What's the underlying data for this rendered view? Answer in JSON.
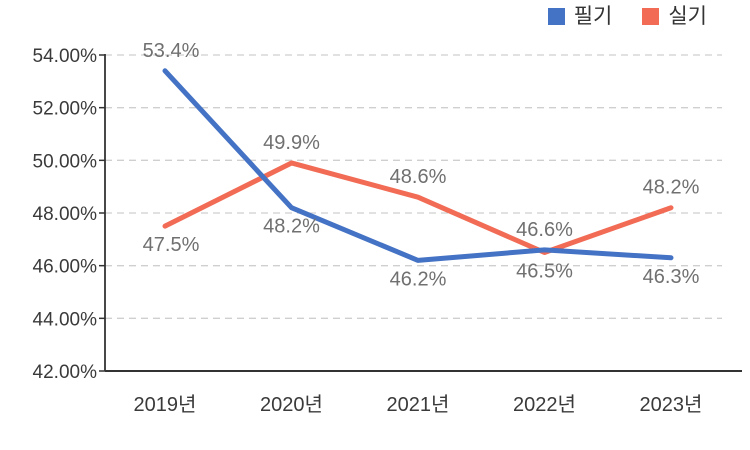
{
  "page": {
    "background_color": "#ffffff"
  },
  "legend": {
    "position": "top-right",
    "items": [
      {
        "label": "필기",
        "color": "#4472c4"
      },
      {
        "label": "실기",
        "color": "#f26b55"
      }
    ]
  },
  "style": {
    "grid_color": "#cfcfcf",
    "axis_color": "#333333",
    "axis_tick_label_color": "#3a3a3a",
    "data_label_color": "#707070",
    "legend_text_color": "#333333"
  },
  "chart_data": {
    "type": "line",
    "title": "",
    "xlabel": "",
    "ylabel": "",
    "grid": true,
    "grid_style": "dashed",
    "legend_position": "top-right",
    "categories": [
      "2019년",
      "2020년",
      "2021년",
      "2022년",
      "2023년"
    ],
    "series": [
      {
        "name": "필기",
        "color": "#4472c4",
        "values": [
          53.4,
          48.2,
          46.2,
          46.6,
          46.3
        ],
        "data_labels": [
          "53.4%",
          "48.2%",
          "46.2%",
          "46.6%",
          "46.3%"
        ],
        "label_positions": [
          "above",
          "below",
          "below",
          "above",
          "below"
        ]
      },
      {
        "name": "실기",
        "color": "#f26b55",
        "values": [
          47.5,
          49.9,
          48.6,
          46.5,
          48.2
        ],
        "data_labels": [
          "47.5%",
          "49.9%",
          "48.6%",
          "46.5%",
          "48.2%"
        ],
        "label_positions": [
          "below",
          "above",
          "above",
          "below",
          "above"
        ]
      }
    ],
    "ylim": [
      42,
      54
    ],
    "ytick_interval": 2,
    "ytick_labels": [
      "54.00%",
      "52.00%",
      "50.00%",
      "48.00%",
      "46.00%",
      "44.00%",
      "42.00%"
    ]
  }
}
